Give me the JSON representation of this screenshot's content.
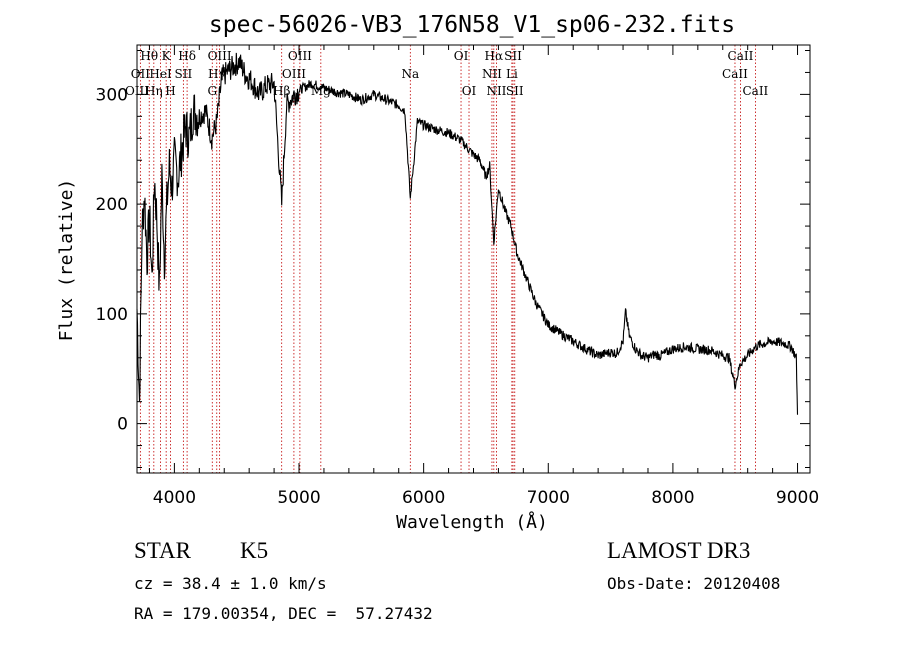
{
  "chart_data": {
    "type": "line",
    "title": "spec-56026-VB3_176N58_V1_sp06-232.fits",
    "xlabel": "Wavelength (Å)",
    "ylabel": "Flux (relative)",
    "xlim": [
      3700,
      9100
    ],
    "ylim": [
      -45,
      345
    ],
    "xticks": [
      4000,
      5000,
      6000,
      7000,
      8000,
      9000
    ],
    "yticks": [
      0,
      100,
      200,
      300
    ],
    "series": [
      {
        "name": "spectrum",
        "x": [
          3700,
          3720,
          3740,
          3760,
          3780,
          3800,
          3820,
          3840,
          3860,
          3880,
          3900,
          3920,
          3940,
          3960,
          3980,
          4000,
          4030,
          4060,
          4090,
          4120,
          4150,
          4200,
          4250,
          4300,
          4340,
          4380,
          4420,
          4470,
          4520,
          4570,
          4620,
          4680,
          4740,
          4800,
          4861,
          4900,
          4960,
          5020,
          5100,
          5200,
          5300,
          5400,
          5500,
          5600,
          5700,
          5800,
          5850,
          5893,
          5950,
          6000,
          6100,
          6200,
          6300,
          6400,
          6450,
          6500,
          6530,
          6563,
          6600,
          6650,
          6700,
          6750,
          6800,
          6850,
          6900,
          6950,
          7000,
          7100,
          7200,
          7300,
          7400,
          7500,
          7550,
          7600,
          7620,
          7650,
          7700,
          7750,
          7800,
          7850,
          7900,
          8000,
          8100,
          8200,
          8300,
          8400,
          8450,
          8498,
          8542,
          8600,
          8662,
          8700,
          8800,
          8900,
          8950,
          8990,
          9000
        ],
        "values": [
          105,
          20,
          175,
          210,
          150,
          190,
          130,
          225,
          185,
          120,
          225,
          150,
          200,
          235,
          215,
          240,
          225,
          250,
          270,
          260,
          285,
          280,
          285,
          260,
          275,
          315,
          320,
          325,
          330,
          318,
          312,
          300,
          308,
          310,
          200,
          290,
          300,
          305,
          310,
          306,
          302,
          300,
          295,
          300,
          295,
          290,
          285,
          205,
          275,
          272,
          268,
          265,
          258,
          245,
          240,
          225,
          235,
          165,
          215,
          195,
          180,
          155,
          140,
          125,
          110,
          100,
          90,
          82,
          75,
          68,
          62,
          65,
          64,
          75,
          102,
          80,
          68,
          62,
          60,
          63,
          62,
          68,
          70,
          68,
          67,
          62,
          60,
          35,
          55,
          62,
          70,
          72,
          75,
          73,
          70,
          60,
          8
        ]
      }
    ],
    "lines": [
      {
        "label": "Hθ",
        "x": 3798,
        "row": 0
      },
      {
        "label": "OII",
        "x": 3727,
        "row": 1
      },
      {
        "label": "OIII",
        "x": 3700,
        "row": 2
      },
      {
        "label": "Hη",
        "x": 3835,
        "row": 2
      },
      {
        "label": "HeI",
        "x": 3889,
        "row": 1
      },
      {
        "label": "K",
        "x": 3934,
        "row": 0
      },
      {
        "label": "SII",
        "x": 4072,
        "row": 1
      },
      {
        "label": "H",
        "x": 3969,
        "row": 2
      },
      {
        "label": "Hδ",
        "x": 4102,
        "row": 0
      },
      {
        "label": "OIII",
        "x": 4363,
        "row": 0
      },
      {
        "label": "Hγ",
        "x": 4340,
        "row": 1
      },
      {
        "label": "G",
        "x": 4304,
        "row": 2
      },
      {
        "label": "OIII",
        "x": 5007,
        "row": 0
      },
      {
        "label": "OIII",
        "x": 4959,
        "row": 1
      },
      {
        "label": "Hβ",
        "x": 4861,
        "row": 2
      },
      {
        "label": "Mg",
        "x": 5175,
        "row": 2
      },
      {
        "label": "Na",
        "x": 5893,
        "row": 1
      },
      {
        "label": "OI",
        "x": 6300,
        "row": 0
      },
      {
        "label": "OI",
        "x": 6364,
        "row": 2
      },
      {
        "label": "Hα",
        "x": 6563,
        "row": 0
      },
      {
        "label": "SII",
        "x": 6717,
        "row": 0
      },
      {
        "label": "NII",
        "x": 6548,
        "row": 1
      },
      {
        "label": "Li",
        "x": 6708,
        "row": 1
      },
      {
        "label": "NII",
        "x": 6584,
        "row": 2
      },
      {
        "label": "SII",
        "x": 6731,
        "row": 2
      },
      {
        "label": "CaII",
        "x": 8542,
        "row": 0
      },
      {
        "label": "CaII",
        "x": 8498,
        "row": 1
      },
      {
        "label": "CaII",
        "x": 8662,
        "row": 2
      }
    ]
  },
  "info": {
    "object_class": "STAR",
    "subclass": "K5",
    "survey": "LAMOST DR3",
    "cz": "cz = 38.4 ± 1.0 km/s",
    "obs_date": "Obs-Date: 20120408",
    "coords": "RA = 179.00354, DEC =  57.27432"
  }
}
